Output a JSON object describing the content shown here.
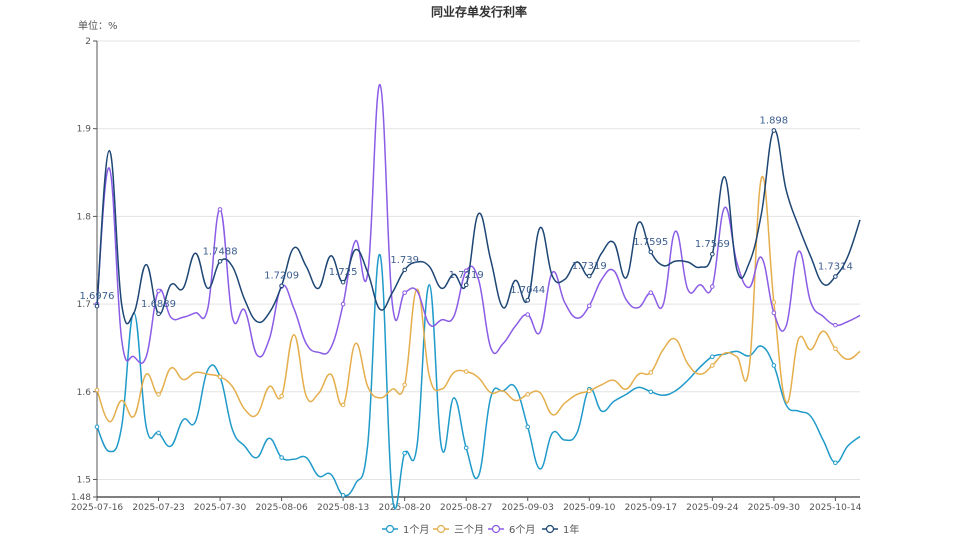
{
  "chart_data": {
    "type": "line",
    "title": "同业存单发行利率",
    "unit_label": "单位：%",
    "smooth": true,
    "ylim": [
      1.48,
      2
    ],
    "yticks": [
      "1.48",
      "1.5",
      "1.6",
      "1.7",
      "1.8",
      "1.9",
      "2"
    ],
    "ytick_values": [
      1.48,
      1.5,
      1.6,
      1.7,
      1.8,
      1.9,
      2
    ],
    "grid": true,
    "legend_position": "bottom",
    "x": [
      "2025-07-16",
      "2025-07-17",
      "2025-07-18",
      "2025-07-21",
      "2025-07-22",
      "2025-07-23",
      "2025-07-24",
      "2025-07-25",
      "2025-07-28",
      "2025-07-29",
      "2025-07-30",
      "2025-07-31",
      "2025-08-01",
      "2025-08-04",
      "2025-08-05",
      "2025-08-06",
      "2025-08-07",
      "2025-08-08",
      "2025-08-11",
      "2025-08-12",
      "2025-08-13",
      "2025-08-14",
      "2025-08-15",
      "2025-08-18",
      "2025-08-19",
      "2025-08-20",
      "2025-08-21",
      "2025-08-22",
      "2025-08-25",
      "2025-08-26",
      "2025-08-27",
      "2025-08-28",
      "2025-08-29",
      "2025-09-01",
      "2025-09-02",
      "2025-09-03",
      "2025-09-04",
      "2025-09-05",
      "2025-09-08",
      "2025-09-09",
      "2025-09-10",
      "2025-09-11",
      "2025-09-12",
      "2025-09-15",
      "2025-09-16",
      "2025-09-17",
      "2025-09-18",
      "2025-09-19",
      "2025-09-22",
      "2025-09-23",
      "2025-09-24",
      "2025-09-25",
      "2025-09-26",
      "2025-09-28",
      "2025-09-29",
      "2025-09-30",
      "2025-10-09",
      "2025-10-10",
      "2025-10-11",
      "2025-10-13",
      "2025-10-14",
      "2025-10-15",
      "2025-10-16"
    ],
    "xticks": [
      "2025-07-16",
      "2025-07-23",
      "2025-07-30",
      "2025-08-06",
      "2025-08-13",
      "2025-08-20",
      "2025-08-27",
      "2025-09-03",
      "2025-09-10",
      "2025-09-17",
      "2025-09-24",
      "2025-09-30",
      "2025-10-14"
    ],
    "series": [
      {
        "name": "1个月",
        "color": "#1f9ac9",
        "values": [
          1.56,
          1.532,
          1.56,
          1.69,
          1.56,
          1.553,
          1.538,
          1.568,
          1.566,
          1.625,
          1.617,
          1.557,
          1.538,
          1.525,
          1.547,
          1.525,
          1.523,
          1.525,
          1.504,
          1.506,
          1.482,
          1.495,
          1.54,
          1.756,
          1.48,
          1.53,
          1.538,
          1.722,
          1.536,
          1.593,
          1.536,
          1.504,
          1.594,
          1.601,
          1.605,
          1.56,
          1.512,
          1.553,
          1.545,
          1.553,
          1.603,
          1.578,
          1.589,
          1.597,
          1.605,
          1.6,
          1.596,
          1.601,
          1.613,
          1.628,
          1.64,
          1.643,
          1.646,
          1.641,
          1.652,
          1.63,
          1.585,
          1.578,
          1.572,
          1.545,
          1.519,
          1.538,
          1.549
        ]
      },
      {
        "name": "三个月",
        "color": "#e5ae4c",
        "values": [
          1.602,
          1.566,
          1.59,
          1.572,
          1.62,
          1.597,
          1.627,
          1.614,
          1.622,
          1.62,
          1.617,
          1.606,
          1.58,
          1.574,
          1.606,
          1.595,
          1.665,
          1.595,
          1.598,
          1.62,
          1.585,
          1.655,
          1.606,
          1.593,
          1.603,
          1.608,
          1.717,
          1.618,
          1.603,
          1.622,
          1.623,
          1.616,
          1.599,
          1.601,
          1.59,
          1.597,
          1.599,
          1.574,
          1.587,
          1.597,
          1.601,
          1.608,
          1.613,
          1.603,
          1.62,
          1.622,
          1.648,
          1.66,
          1.632,
          1.62,
          1.63,
          1.644,
          1.64,
          1.628,
          1.844,
          1.702,
          1.588,
          1.66,
          1.648,
          1.669,
          1.649,
          1.637,
          1.646
        ]
      },
      {
        "name": "6个月",
        "color": "#8b5ce6",
        "values": [
          1.7,
          1.855,
          1.66,
          1.64,
          1.64,
          1.715,
          1.685,
          1.685,
          1.69,
          1.695,
          1.808,
          1.685,
          1.693,
          1.642,
          1.66,
          1.72,
          1.695,
          1.655,
          1.645,
          1.65,
          1.7,
          1.772,
          1.735,
          1.95,
          1.7,
          1.713,
          1.715,
          1.677,
          1.682,
          1.686,
          1.738,
          1.728,
          1.65,
          1.655,
          1.675,
          1.688,
          1.668,
          1.736,
          1.702,
          1.684,
          1.698,
          1.728,
          1.738,
          1.705,
          1.696,
          1.713,
          1.699,
          1.783,
          1.717,
          1.722,
          1.72,
          1.81,
          1.747,
          1.719,
          1.753,
          1.69,
          1.675,
          1.76,
          1.702,
          1.686,
          1.676,
          1.68,
          1.687
        ]
      },
      {
        "name": "1年",
        "color": "#1d4674",
        "values": [
          1.6976,
          1.875,
          1.7,
          1.69,
          1.745,
          1.6889,
          1.722,
          1.718,
          1.758,
          1.718,
          1.7488,
          1.743,
          1.705,
          1.68,
          1.69,
          1.7209,
          1.764,
          1.743,
          1.718,
          1.755,
          1.725,
          1.762,
          1.736,
          1.694,
          1.713,
          1.739,
          1.748,
          1.743,
          1.718,
          1.734,
          1.7219,
          1.803,
          1.75,
          1.696,
          1.727,
          1.7044,
          1.787,
          1.732,
          1.728,
          1.748,
          1.7319,
          1.758,
          1.77,
          1.73,
          1.793,
          1.7595,
          1.744,
          1.749,
          1.748,
          1.742,
          1.7569,
          1.845,
          1.739,
          1.747,
          1.804,
          1.898,
          1.83,
          1.789,
          1.754,
          1.723,
          1.7314,
          1.754,
          1.796
        ],
        "data_labels": [
          "1.6976",
          "1.6889",
          "1.7488",
          "1.7209",
          "1.725",
          "1.739",
          "1.7219",
          "1.7044",
          "1.7319",
          "1.7595",
          "1.7569",
          "1.898",
          "1.7314"
        ]
      }
    ]
  }
}
